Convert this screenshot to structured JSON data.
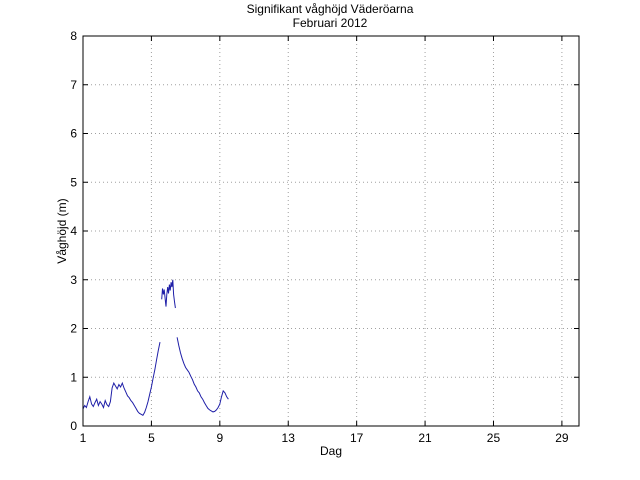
{
  "chart_data": {
    "type": "line",
    "title": "Signifikant våghöjd Väderöarna",
    "subtitle": "Februari 2012",
    "xlabel": "Dag",
    "ylabel": "Våghöjd (m)",
    "xlim": [
      1,
      30
    ],
    "ylim": [
      0,
      8
    ],
    "xticks": [
      1,
      5,
      9,
      13,
      17,
      21,
      25,
      29
    ],
    "yticks": [
      0,
      1,
      2,
      3,
      4,
      5,
      6,
      7,
      8
    ],
    "grid": true,
    "colors": {
      "line": "#1f1fa8",
      "grid": "#a0a0a0"
    },
    "series": [
      {
        "segments": [
          [
            [
              1.0,
              0.35
            ],
            [
              1.1,
              0.42
            ],
            [
              1.2,
              0.38
            ],
            [
              1.3,
              0.5
            ],
            [
              1.4,
              0.6
            ],
            [
              1.5,
              0.45
            ],
            [
              1.6,
              0.4
            ],
            [
              1.7,
              0.48
            ],
            [
              1.8,
              0.55
            ],
            [
              1.9,
              0.42
            ],
            [
              2.0,
              0.5
            ],
            [
              2.1,
              0.45
            ],
            [
              2.2,
              0.38
            ],
            [
              2.3,
              0.52
            ],
            [
              2.4,
              0.44
            ],
            [
              2.5,
              0.4
            ],
            [
              2.6,
              0.5
            ],
            [
              2.7,
              0.78
            ],
            [
              2.8,
              0.88
            ],
            [
              2.9,
              0.82
            ],
            [
              3.0,
              0.76
            ],
            [
              3.1,
              0.85
            ],
            [
              3.2,
              0.8
            ],
            [
              3.3,
              0.88
            ],
            [
              3.4,
              0.78
            ],
            [
              3.5,
              0.7
            ],
            [
              3.6,
              0.62
            ],
            [
              3.7,
              0.58
            ],
            [
              3.8,
              0.52
            ],
            [
              3.9,
              0.48
            ],
            [
              4.0,
              0.42
            ],
            [
              4.1,
              0.36
            ],
            [
              4.2,
              0.3
            ],
            [
              4.3,
              0.26
            ],
            [
              4.4,
              0.24
            ],
            [
              4.5,
              0.22
            ],
            [
              4.6,
              0.28
            ],
            [
              4.7,
              0.38
            ],
            [
              4.8,
              0.5
            ],
            [
              4.9,
              0.65
            ],
            [
              5.0,
              0.8
            ],
            [
              5.1,
              0.98
            ],
            [
              5.2,
              1.15
            ],
            [
              5.3,
              1.35
            ],
            [
              5.4,
              1.55
            ],
            [
              5.5,
              1.72
            ]
          ],
          [
            [
              5.6,
              2.6
            ],
            [
              5.65,
              2.82
            ],
            [
              5.7,
              2.7
            ],
            [
              5.75,
              2.8
            ],
            [
              5.8,
              2.62
            ],
            [
              5.85,
              2.45
            ],
            [
              5.9,
              2.7
            ],
            [
              5.95,
              2.85
            ],
            [
              6.0,
              2.72
            ],
            [
              6.05,
              2.9
            ],
            [
              6.1,
              2.78
            ],
            [
              6.15,
              2.95
            ],
            [
              6.2,
              2.85
            ],
            [
              6.25,
              3.0
            ],
            [
              6.3,
              2.7
            ],
            [
              6.35,
              2.55
            ],
            [
              6.4,
              2.42
            ]
          ],
          [
            [
              6.5,
              1.82
            ],
            [
              6.6,
              1.65
            ],
            [
              6.7,
              1.5
            ],
            [
              6.8,
              1.38
            ],
            [
              6.9,
              1.28
            ],
            [
              7.0,
              1.2
            ],
            [
              7.1,
              1.15
            ],
            [
              7.2,
              1.1
            ],
            [
              7.3,
              1.02
            ],
            [
              7.4,
              0.95
            ],
            [
              7.5,
              0.86
            ],
            [
              7.6,
              0.8
            ],
            [
              7.7,
              0.72
            ],
            [
              7.8,
              0.68
            ],
            [
              7.9,
              0.6
            ],
            [
              8.0,
              0.55
            ],
            [
              8.1,
              0.48
            ],
            [
              8.2,
              0.42
            ],
            [
              8.3,
              0.36
            ],
            [
              8.4,
              0.33
            ],
            [
              8.5,
              0.31
            ],
            [
              8.6,
              0.29
            ],
            [
              8.7,
              0.3
            ],
            [
              8.8,
              0.33
            ],
            [
              8.9,
              0.38
            ],
            [
              9.0,
              0.45
            ],
            [
              9.1,
              0.6
            ],
            [
              9.2,
              0.72
            ],
            [
              9.3,
              0.68
            ],
            [
              9.4,
              0.6
            ],
            [
              9.5,
              0.55
            ]
          ]
        ]
      }
    ]
  }
}
